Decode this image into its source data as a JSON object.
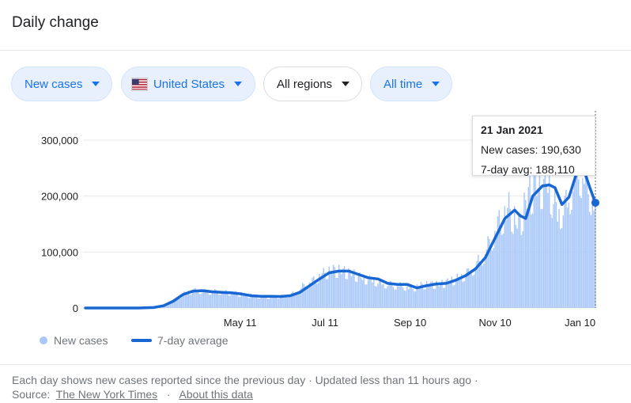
{
  "header": {
    "title": "Daily change"
  },
  "filters": {
    "metric": "New cases",
    "country": "United States",
    "region": "All regions",
    "period": "All time"
  },
  "tooltip": {
    "date": "21 Jan 2021",
    "new_cases_label": "New cases: 190,630",
    "avg_label": "7-day avg: 188,110"
  },
  "legend": {
    "bars": "New cases",
    "line": "7-day average"
  },
  "footer": {
    "line1": "Each day shows new cases reported since the previous day · Updated less than 11 hours ago  ·",
    "source_label": "Source:",
    "source_link": "The New York Times",
    "sep": "·",
    "about_link": "About this data"
  },
  "colors": {
    "bar": "#a8c7fa",
    "line": "#1967d2",
    "accent": "#1a73e8"
  },
  "chart_data": {
    "type": "bar",
    "x_start": "2020-01-21",
    "x_end": "2021-01-21",
    "xticks": [
      "May 11",
      "Jul 11",
      "Sep 10",
      "Nov 10",
      "Jan 10"
    ],
    "yticks": [
      "0",
      "100,000",
      "200,000",
      "300,000"
    ],
    "ylim": [
      0,
      300000
    ],
    "series": [
      {
        "name": "New cases",
        "type": "bar",
        "points": [
          [
            "2020-01-21",
            0
          ],
          [
            "2020-02-21",
            20
          ],
          [
            "2020-03-05",
            100
          ],
          [
            "2020-03-12",
            500
          ],
          [
            "2020-03-20",
            5000
          ],
          [
            "2020-03-27",
            18000
          ],
          [
            "2020-04-03",
            30000
          ],
          [
            "2020-04-10",
            33000
          ],
          [
            "2020-04-17",
            30000
          ],
          [
            "2020-04-24",
            31000
          ],
          [
            "2020-05-01",
            29000
          ],
          [
            "2020-05-08",
            27000
          ],
          [
            "2020-05-15",
            24000
          ],
          [
            "2020-05-22",
            22000
          ],
          [
            "2020-05-29",
            21000
          ],
          [
            "2020-06-05",
            21000
          ],
          [
            "2020-06-12",
            22000
          ],
          [
            "2020-06-19",
            28000
          ],
          [
            "2020-06-26",
            42000
          ],
          [
            "2020-07-03",
            52000
          ],
          [
            "2020-07-10",
            64000
          ],
          [
            "2020-07-17",
            70000
          ],
          [
            "2020-07-24",
            68000
          ],
          [
            "2020-07-31",
            63000
          ],
          [
            "2020-08-07",
            55000
          ],
          [
            "2020-08-14",
            52000
          ],
          [
            "2020-08-21",
            46000
          ],
          [
            "2020-08-28",
            43000
          ],
          [
            "2020-09-04",
            42000
          ],
          [
            "2020-09-11",
            36000
          ],
          [
            "2020-09-18",
            42000
          ],
          [
            "2020-09-25",
            44000
          ],
          [
            "2020-10-02",
            44000
          ],
          [
            "2020-10-09",
            50000
          ],
          [
            "2020-10-16",
            57000
          ],
          [
            "2020-10-23",
            68000
          ],
          [
            "2020-10-30",
            88000
          ],
          [
            "2020-11-06",
            120000
          ],
          [
            "2020-11-13",
            160000
          ],
          [
            "2020-11-20",
            185000
          ],
          [
            "2020-11-27",
            150000
          ],
          [
            "2020-12-04",
            210000
          ],
          [
            "2020-12-11",
            225000
          ],
          [
            "2020-12-18",
            230000
          ],
          [
            "2020-12-25",
            175000
          ],
          [
            "2021-01-01",
            195000
          ],
          [
            "2021-01-08",
            265000
          ],
          [
            "2021-01-15",
            235000
          ],
          [
            "2021-01-21",
            190630
          ]
        ]
      },
      {
        "name": "7-day average",
        "type": "line",
        "points": [
          [
            "2020-01-21",
            0
          ],
          [
            "2020-02-28",
            50
          ],
          [
            "2020-03-10",
            800
          ],
          [
            "2020-03-17",
            4000
          ],
          [
            "2020-03-24",
            12000
          ],
          [
            "2020-03-31",
            24000
          ],
          [
            "2020-04-07",
            30000
          ],
          [
            "2020-04-14",
            31000
          ],
          [
            "2020-04-21",
            29000
          ],
          [
            "2020-04-28",
            28000
          ],
          [
            "2020-05-05",
            27000
          ],
          [
            "2020-05-12",
            25000
          ],
          [
            "2020-05-19",
            22000
          ],
          [
            "2020-05-26",
            21000
          ],
          [
            "2020-06-02",
            21000
          ],
          [
            "2020-06-09",
            20500
          ],
          [
            "2020-06-16",
            22000
          ],
          [
            "2020-06-23",
            28000
          ],
          [
            "2020-06-30",
            40000
          ],
          [
            "2020-07-07",
            52000
          ],
          [
            "2020-07-14",
            63000
          ],
          [
            "2020-07-21",
            66000
          ],
          [
            "2020-07-28",
            66000
          ],
          [
            "2020-08-04",
            60000
          ],
          [
            "2020-08-11",
            54000
          ],
          [
            "2020-08-18",
            52000
          ],
          [
            "2020-08-25",
            44000
          ],
          [
            "2020-09-01",
            42000
          ],
          [
            "2020-09-08",
            42000
          ],
          [
            "2020-09-15",
            36000
          ],
          [
            "2020-09-22",
            40000
          ],
          [
            "2020-09-29",
            43000
          ],
          [
            "2020-10-06",
            44000
          ],
          [
            "2020-10-13",
            50000
          ],
          [
            "2020-10-20",
            58000
          ],
          [
            "2020-10-27",
            70000
          ],
          [
            "2020-11-03",
            90000
          ],
          [
            "2020-11-10",
            125000
          ],
          [
            "2020-11-17",
            160000
          ],
          [
            "2020-11-24",
            175000
          ],
          [
            "2020-11-28",
            165000
          ],
          [
            "2020-12-02",
            160000
          ],
          [
            "2020-12-07",
            200000
          ],
          [
            "2020-12-14",
            218000
          ],
          [
            "2020-12-19",
            220000
          ],
          [
            "2020-12-23",
            215000
          ],
          [
            "2020-12-28",
            185000
          ],
          [
            "2021-01-02",
            198000
          ],
          [
            "2021-01-08",
            245000
          ],
          [
            "2021-01-12",
            252000
          ],
          [
            "2021-01-17",
            215000
          ],
          [
            "2021-01-21",
            188110
          ]
        ]
      }
    ]
  }
}
